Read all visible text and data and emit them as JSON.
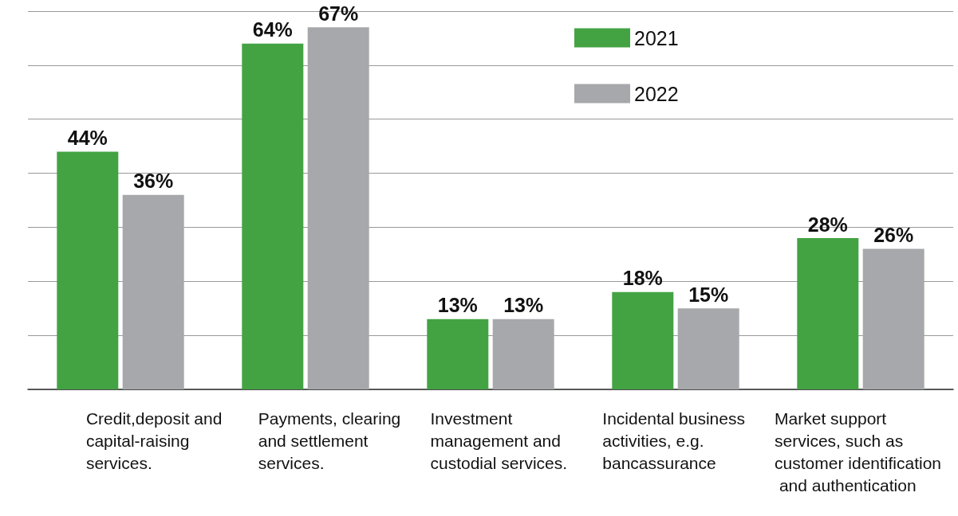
{
  "chart_data": {
    "type": "bar",
    "categories": [
      "Credit,deposit and capital-raising services.",
      "Payments, clearing and settlement services.",
      "Investment management and custodial services.",
      "Incidental business activities, e.g. bancassurance",
      "Market support services, such as customer identification and authentication"
    ],
    "series": [
      {
        "name": "2021",
        "color": "#43a343",
        "values": [
          44,
          64,
          13,
          18,
          28
        ],
        "value_labels": [
          "44%",
          "64%",
          "13%",
          "18%",
          "28%"
        ]
      },
      {
        "name": "2022",
        "color": "#a7a8ab",
        "values": [
          36,
          67,
          13,
          15,
          26
        ],
        "value_labels": [
          "36%",
          "67%",
          "13%",
          "15%",
          "26%"
        ]
      }
    ],
    "ylim": [
      0,
      70
    ],
    "yticks": [
      {
        "value": 0,
        "label": null
      },
      {
        "value": 10,
        "label": null
      },
      {
        "value": 20,
        "label": null
      },
      {
        "value": 30,
        "label": null
      },
      {
        "value": 40,
        "label": null
      },
      {
        "value": 50,
        "label": null
      },
      {
        "value": 60,
        "label": null
      },
      {
        "value": 70,
        "label": null
      }
    ],
    "tick_labels": "x",
    "grid": "y",
    "legend": "top"
  }
}
